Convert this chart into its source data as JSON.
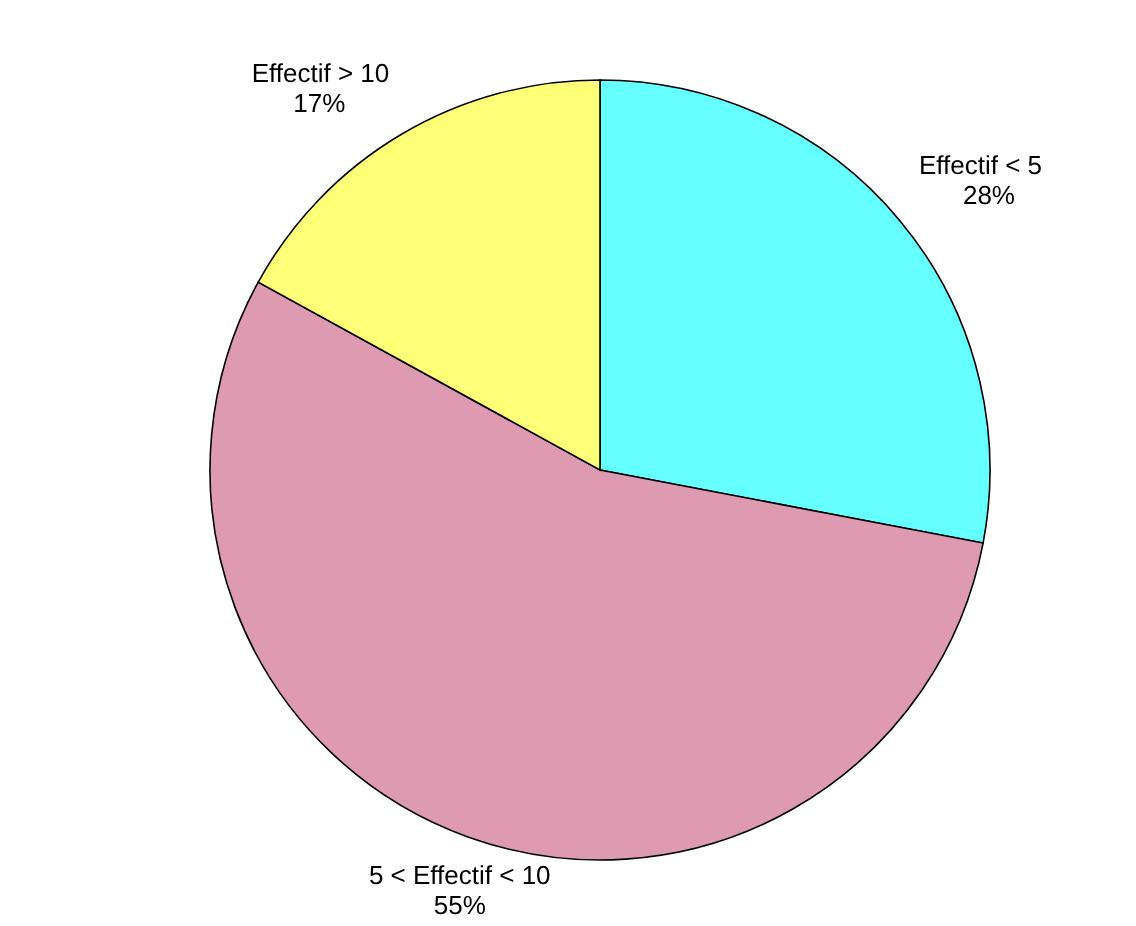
{
  "chart_data": {
    "type": "pie",
    "categories": [
      "Effectif < 5",
      "5 < Effectif < 10",
      "Effectif > 10"
    ],
    "values": [
      28,
      55,
      17
    ],
    "value_labels": [
      "28%",
      "55%",
      "17%"
    ],
    "colors": [
      "#66ffff",
      "#dd9ab1",
      "#ffff78"
    ]
  }
}
